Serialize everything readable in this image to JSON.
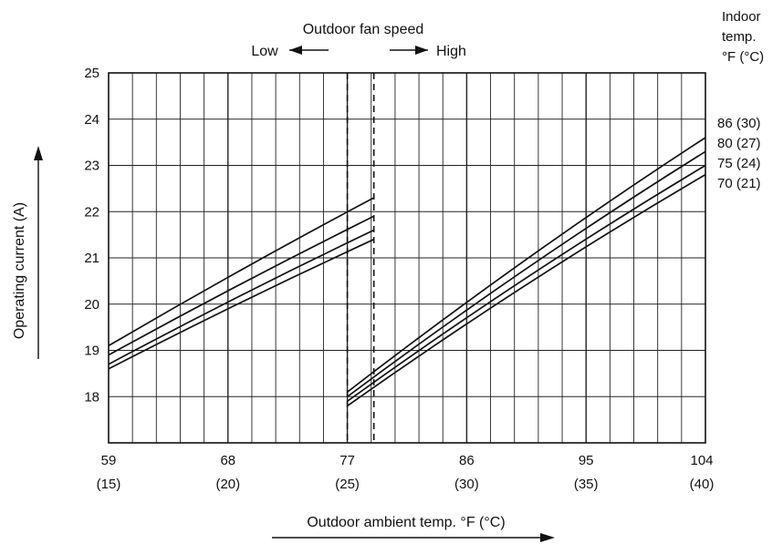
{
  "chart_data": {
    "type": "line",
    "title": "",
    "xlabel": "Outdoor ambient temp. °F (°C)",
    "ylabel": "Operating current (A)",
    "xlim": [
      59,
      104
    ],
    "ylim": [
      17,
      25
    ],
    "x_ticks": [
      {
        "value": 59,
        "label": "59",
        "sublabel": "(15)"
      },
      {
        "value": 68,
        "label": "68",
        "sublabel": "(20)"
      },
      {
        "value": 77,
        "label": "77",
        "sublabel": "(25)"
      },
      {
        "value": 86,
        "label": "86",
        "sublabel": "(30)"
      },
      {
        "value": 95,
        "label": "95",
        "sublabel": "(35)"
      },
      {
        "value": 104,
        "label": "104",
        "sublabel": "(40)"
      }
    ],
    "y_ticks": [
      18,
      19,
      20,
      21,
      22,
      23,
      24,
      25
    ],
    "grid": true,
    "fan_speed_label": "Outdoor fan speed",
    "fan_low_label": "Low",
    "fan_high_label": "High",
    "fan_switch_band": [
      77,
      79
    ],
    "legend_title": [
      "Indoor",
      "temp.",
      "°F (°C)"
    ],
    "legend_position": "right",
    "series": [
      {
        "name": "86 (30)",
        "segments": [
          {
            "x": [
              59,
              79
            ],
            "y": [
              19.1,
              22.3
            ]
          },
          {
            "x": [
              77,
              104
            ],
            "y": [
              18.1,
              23.6
            ]
          }
        ]
      },
      {
        "name": "80 (27)",
        "segments": [
          {
            "x": [
              59,
              79
            ],
            "y": [
              18.9,
              21.9
            ]
          },
          {
            "x": [
              77,
              104
            ],
            "y": [
              18.0,
              23.3
            ]
          }
        ]
      },
      {
        "name": "75 (24)",
        "segments": [
          {
            "x": [
              59,
              79
            ],
            "y": [
              18.7,
              21.6
            ]
          },
          {
            "x": [
              77,
              104
            ],
            "y": [
              17.9,
              23.0
            ]
          }
        ]
      },
      {
        "name": "70 (21)",
        "segments": [
          {
            "x": [
              59,
              79
            ],
            "y": [
              18.6,
              21.4
            ]
          },
          {
            "x": [
              77,
              104
            ],
            "y": [
              17.8,
              22.8
            ]
          }
        ]
      }
    ]
  }
}
